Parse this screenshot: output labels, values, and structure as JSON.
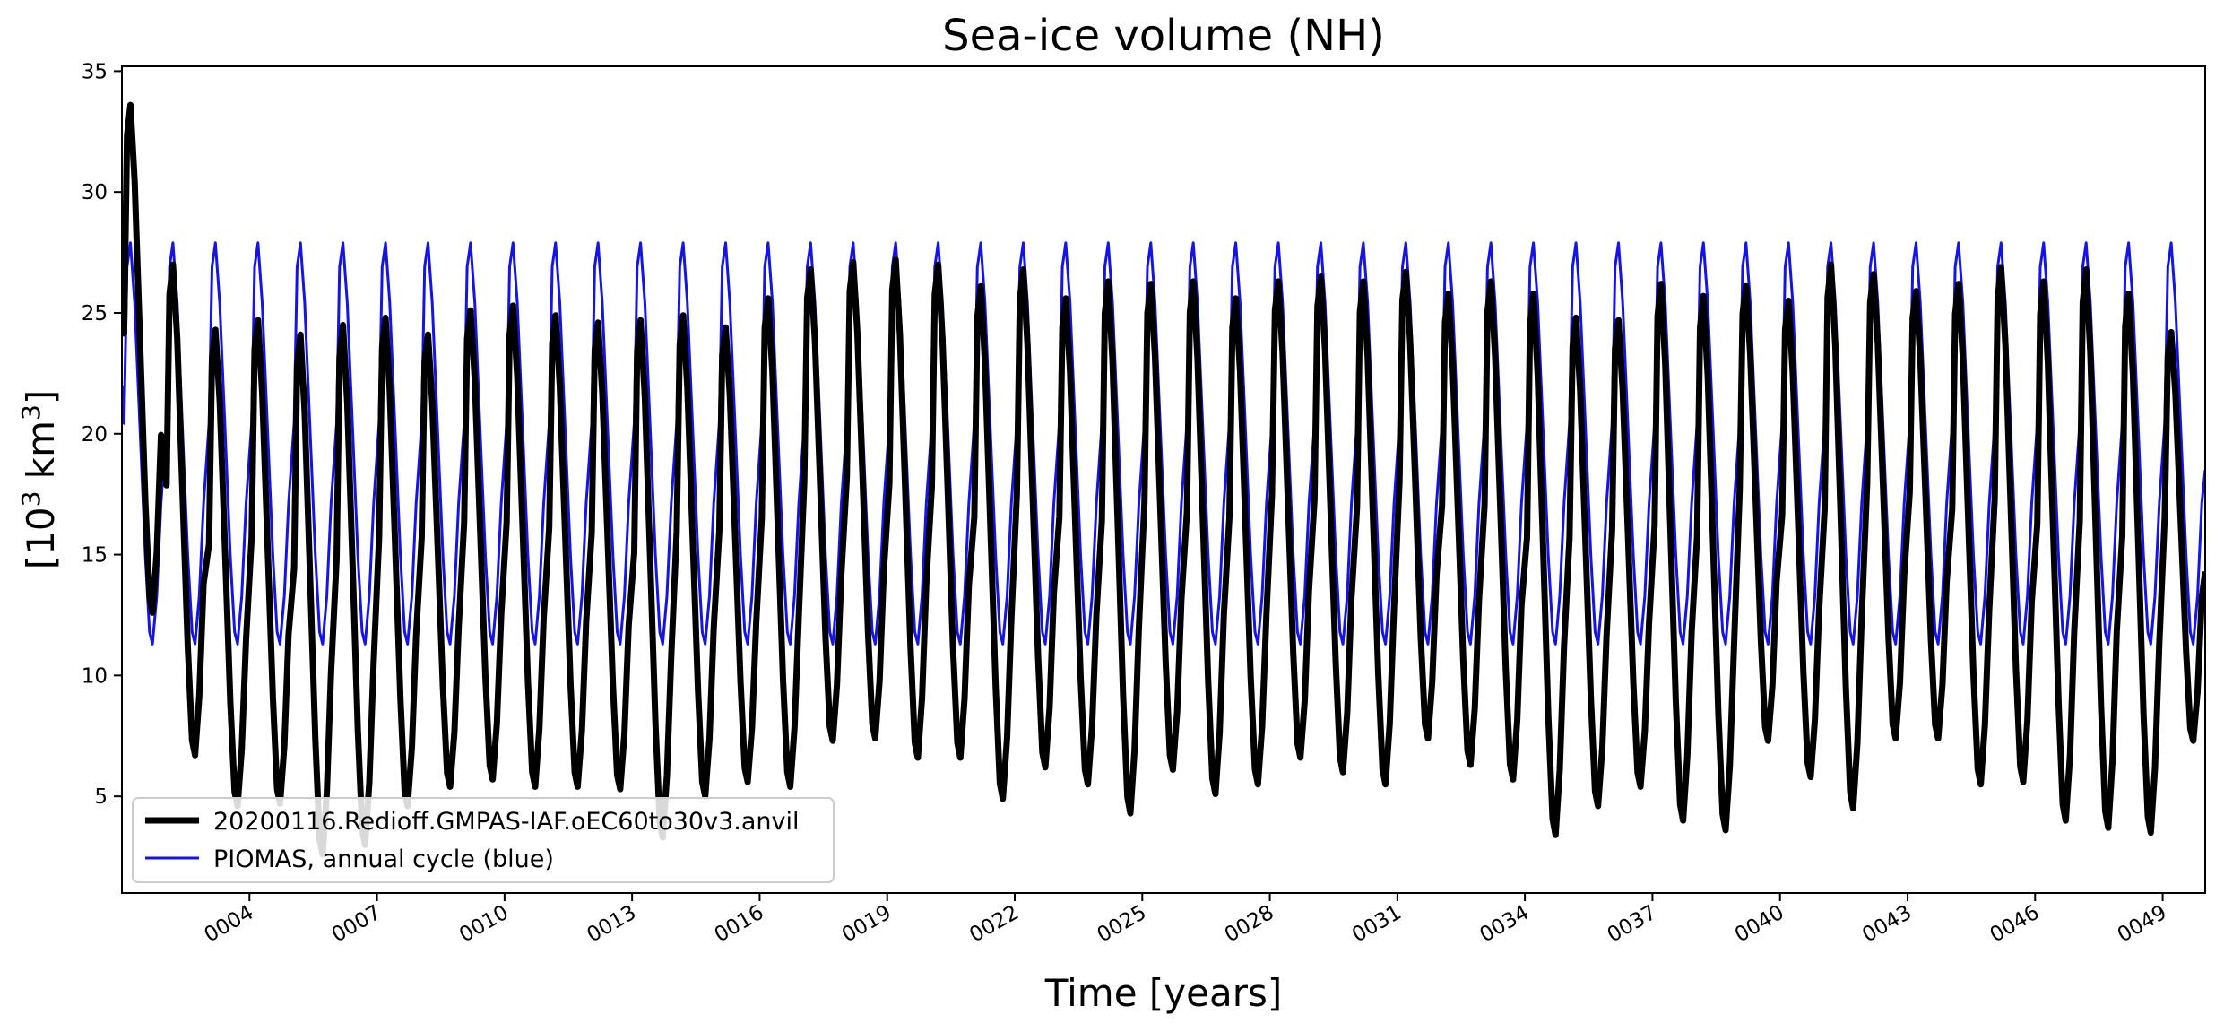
{
  "chart_data": {
    "type": "line",
    "title": "Sea-ice volume (NH)",
    "xlabel": "Time [years]",
    "ylabel": "[10",
    "ylabel_sup": "3",
    "ylabel_unit": " km",
    "ylabel_sup2": "3",
    "ylabel_close": "]",
    "xlim": [
      1.0,
      50.0
    ],
    "ylim": [
      1.0,
      35.2
    ],
    "x_ticks": [
      4,
      7,
      10,
      13,
      16,
      19,
      22,
      25,
      28,
      31,
      34,
      37,
      40,
      43,
      46,
      49
    ],
    "x_tick_labels": [
      "0004",
      "0007",
      "0010",
      "0013",
      "0016",
      "0019",
      "0022",
      "0025",
      "0028",
      "0031",
      "0034",
      "0037",
      "0040",
      "0043",
      "0046",
      "0049"
    ],
    "y_ticks": [
      5,
      10,
      15,
      20,
      25,
      30,
      35
    ],
    "y_tick_labels": [
      "5",
      "10",
      "15",
      "20",
      "25",
      "30",
      "35"
    ],
    "legend_position": "lower-left",
    "series": [
      {
        "name": "20200116.Redioff.GMPAS-IAF.oEC60to30v3.anvil",
        "color": "#000000",
        "annual_max": [
          33.6,
          27.0,
          24.3,
          24.7,
          24.1,
          24.5,
          24.8,
          24.1,
          25.1,
          25.3,
          24.9,
          24.6,
          24.7,
          24.9,
          24.4,
          25.6,
          26.8,
          27.1,
          27.2,
          27.0,
          26.1,
          26.8,
          25.6,
          26.3,
          26.2,
          26.3,
          25.6,
          26.3,
          26.5,
          26.3,
          26.7,
          25.8,
          26.3,
          25.8,
          24.8,
          24.7,
          26.2,
          25.7,
          26.1,
          25.5,
          27.0,
          26.6,
          25.9,
          26.2,
          26.9,
          26.3,
          26.8,
          25.8,
          24.2,
          24.5
        ],
        "annual_min": [
          12.6,
          6.7,
          4.6,
          4.7,
          2.6,
          3.0,
          4.6,
          5.4,
          5.7,
          5.4,
          5.4,
          5.3,
          3.3,
          5.0,
          5.6,
          5.4,
          7.3,
          7.4,
          6.6,
          6.6,
          4.9,
          6.2,
          5.5,
          4.3,
          6.1,
          5.1,
          5.5,
          6.6,
          6.0,
          5.5,
          7.4,
          6.3,
          5.7,
          3.4,
          4.6,
          5.4,
          4.0,
          3.6,
          7.3,
          5.8,
          4.5,
          7.4,
          7.4,
          5.5,
          5.6,
          4.0,
          3.7,
          3.5,
          7.3,
          7.2
        ],
        "end_value": 14.3
      },
      {
        "name": "PIOMAS, annual cycle (blue)",
        "color": "#1414e6",
        "annual_max": 27.9,
        "annual_min": 11.3,
        "end_value": 18.5
      }
    ]
  }
}
